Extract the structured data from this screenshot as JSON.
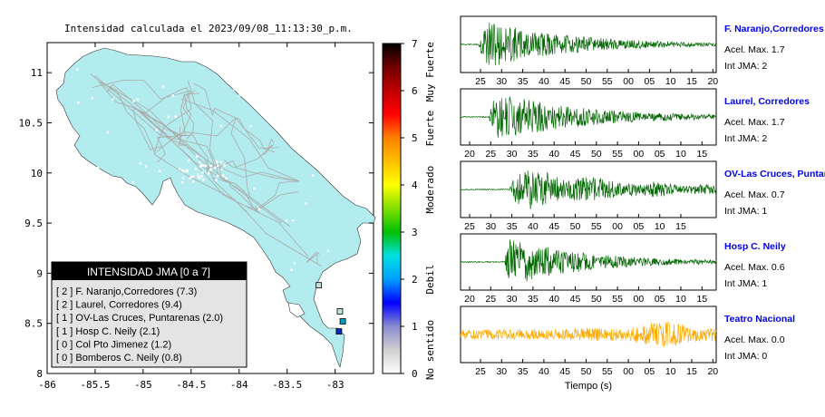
{
  "map": {
    "title": "Intensidad calculada el 2023/09/08_11:13:30_p.m.",
    "xticks": [
      "-86",
      "-85.5",
      "-85",
      "-84.5",
      "-84",
      "-83.5",
      "-83"
    ],
    "yticks": [
      "11",
      "10.5",
      "10",
      "9.5",
      "9",
      "8.5",
      "8"
    ],
    "xlim": [
      -86,
      -82.6
    ],
    "ylim": [
      8,
      11.3
    ],
    "land_color": "#b3ecee",
    "road_color": "#aaaaaa",
    "stations": [
      {
        "name": "F. Naranjo",
        "lon": -82.92,
        "lat": 8.52,
        "color": "#00a0c0"
      },
      {
        "name": "Laurel",
        "lon": -82.95,
        "lat": 8.62,
        "color": "#c0e0e0"
      },
      {
        "name": "Hosp C. Neily",
        "lon": -83.17,
        "lat": 8.88,
        "color": "#c0e0e0"
      },
      {
        "name": "Bomberos",
        "lon": -82.96,
        "lat": 8.42,
        "color": "#0030c0"
      }
    ]
  },
  "legend": {
    "title": "INTENSIDAD JMA [0 a 7]",
    "items": [
      "[ 2 ]  F. Naranjo,Corredores (7.3)",
      "[ 2 ]  Laurel, Corredores (9.4)",
      "[ 1 ]  OV-Las Cruces, Puntarenas (2.0)",
      "[ 1 ]  Hosp C. Neily (2.1)",
      "[ 0 ]  Col Pto Jimenez (1.2)",
      "[ 0 ]  Bomberos C. Neily (0.8)"
    ]
  },
  "colorbar": {
    "ticks": [
      "0",
      "1",
      "2",
      "3",
      "4",
      "5",
      "6",
      "7"
    ],
    "labels": [
      {
        "text": "No sentido",
        "value": 0.5
      },
      {
        "text": "Debil",
        "value": 2.0
      },
      {
        "text": "Moderado",
        "value": 3.9
      },
      {
        "text": "Fuerte",
        "value": 5.2
      },
      {
        "text": "Muy Fuerte",
        "value": 6.4
      }
    ],
    "colors": [
      "#ffffff",
      "#d0d0d0",
      "#8a8ad0",
      "#0000ff",
      "#00a0ff",
      "#00e0e0",
      "#00c000",
      "#80e000",
      "#ffff00",
      "#ffc000",
      "#ff8000",
      "#ff0000",
      "#c00000",
      "#700000",
      "#000000"
    ]
  },
  "chart_data": [
    {
      "type": "line",
      "title": "F. Naranjo,Corredores",
      "acel": "Acel. Max. 1.7",
      "jma": "Int JMA: 2",
      "color": "#006400",
      "xticks": [
        "25",
        "30",
        "35",
        "40",
        "45",
        "50",
        "55",
        "00",
        "05",
        "10",
        "15",
        "20"
      ],
      "onset": 0.07,
      "amp": 1.0,
      "decay": 3.2
    },
    {
      "type": "line",
      "title": "Laurel, Corredores",
      "acel": "Acel. Max. 1.7",
      "jma": "Int JMA: 2",
      "color": "#006400",
      "xticks": [
        "20",
        "25",
        "30",
        "35",
        "40",
        "45",
        "50",
        "55",
        "00",
        "05",
        "10",
        "15"
      ],
      "onset": 0.11,
      "amp": 1.0,
      "decay": 3.0
    },
    {
      "type": "line",
      "title": "OV-Las Cruces, Puntar",
      "acel": "Acel. Max. 0.7",
      "jma": "Int JMA: 1",
      "color": "#006400",
      "xticks": [
        "25",
        "30",
        "35",
        "40",
        "45",
        "50",
        "55",
        "00",
        "05",
        "10",
        "15"
      ],
      "onset": 0.19,
      "amp": 0.95,
      "decay": 2.2
    },
    {
      "type": "line",
      "title": "Hosp C. Neily",
      "acel": "Acel. Max. 0.6",
      "jma": "Int JMA: 1",
      "color": "#006400",
      "xticks": [
        "20",
        "25",
        "30",
        "35",
        "40",
        "45",
        "50",
        "55",
        "00",
        "05",
        "10",
        "15"
      ],
      "onset": 0.17,
      "amp": 1.0,
      "decay": 3.5
    },
    {
      "type": "line",
      "title": "Teatro Nacional",
      "acel": "Acel. Max. 0.0",
      "jma": "Int JMA: 0",
      "color": "#ffaa00",
      "xticks": [
        "25",
        "30",
        "35",
        "40",
        "45",
        "50",
        "55",
        "00",
        "05",
        "10",
        "15",
        "20"
      ],
      "onset": 0.0,
      "amp": 0.55,
      "decay": 0.0,
      "xlabel": "Tiempo (s)"
    }
  ]
}
